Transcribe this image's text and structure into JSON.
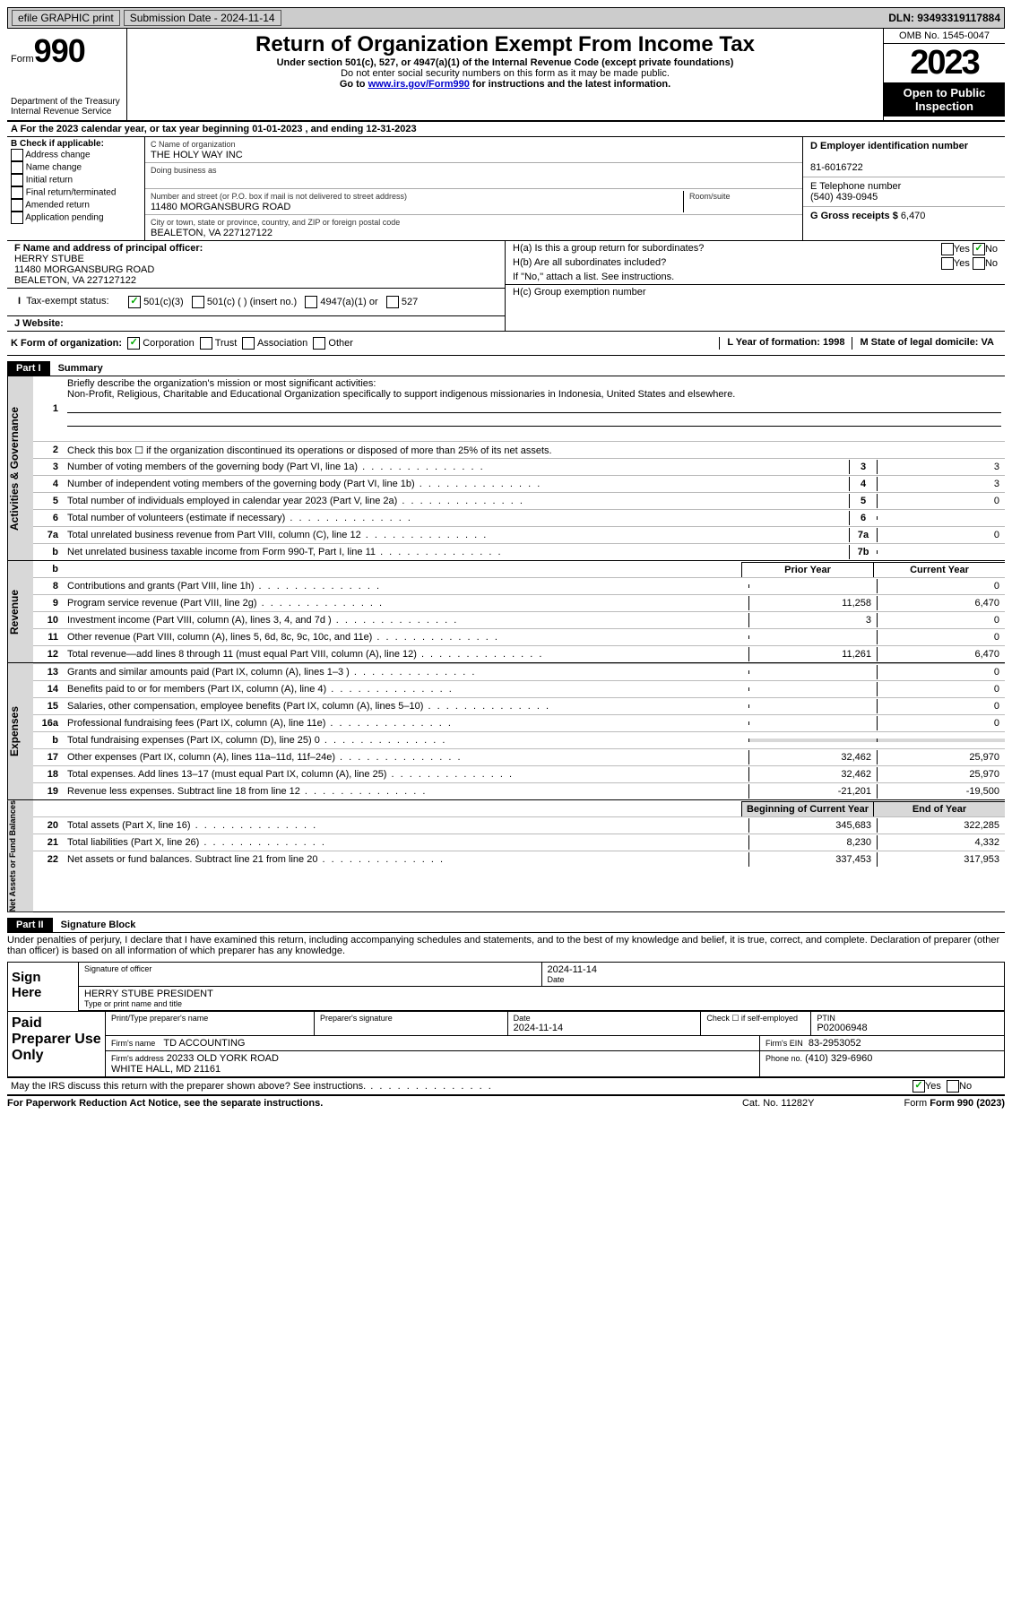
{
  "topbar": {
    "efile": "efile GRAPHIC print",
    "submission": "Submission Date - 2024-11-14",
    "dln": "DLN: 93493319117884"
  },
  "header": {
    "form": "Form",
    "num": "990",
    "title": "Return of Organization Exempt From Income Tax",
    "sub": "Under section 501(c), 527, or 4947(a)(1) of the Internal Revenue Code (except private foundations)",
    "nossn": "Do not enter social security numbers on this form as it may be made public.",
    "goto_pre": "Go to ",
    "goto_link": "www.irs.gov/Form990",
    "goto_post": " for instructions and the latest information.",
    "dept": "Department of the Treasury",
    "irs": "Internal Revenue Service",
    "omb": "OMB No. 1545-0047",
    "year": "2023",
    "open_pub": "Open to Public Inspection"
  },
  "row_a": "A For the 2023 calendar year, or tax year beginning 01-01-2023    , and ending 12-31-2023",
  "box_b": {
    "label": "B Check if applicable:",
    "addr": "Address change",
    "name": "Name change",
    "init": "Initial return",
    "final": "Final return/terminated",
    "amend": "Amended return",
    "app": "Application pending"
  },
  "box_c": {
    "name_lbl": "C Name of organization",
    "name": "THE HOLY WAY INC",
    "dba": "Doing business as",
    "street_lbl": "Number and street (or P.O. box if mail is not delivered to street address)",
    "street": "11480 MORGANSBURG ROAD",
    "room_lbl": "Room/suite",
    "city_lbl": "City or town, state or province, country, and ZIP or foreign postal code",
    "city": "BEALETON, VA  227127122"
  },
  "box_d": {
    "ein_lbl": "D Employer identification number",
    "ein": "81-6016722",
    "tel_lbl": "E Telephone number",
    "tel": "(540) 439-0945",
    "gross_lbl": "G Gross receipts $",
    "gross": "6,470"
  },
  "box_f": {
    "lbl": "F Name and address of principal officer:",
    "name": "HERRY STUBE",
    "street": "11480 MORGANSBURG ROAD",
    "city": "BEALETON, VA  227127122"
  },
  "box_h": {
    "a": "H(a)  Is this a group return for subordinates?",
    "b": "H(b)  Are all subordinates included?",
    "note": "If \"No,\" attach a list. See instructions.",
    "c": "H(c)  Group exemption number",
    "yes": "Yes",
    "no": "No"
  },
  "row_i": {
    "lbl": "Tax-exempt status:",
    "o1": "501(c)(3)",
    "o2": "501(c) (  ) (insert no.)",
    "o3": "4947(a)(1) or",
    "o4": "527"
  },
  "row_j": {
    "lbl": "J    Website:"
  },
  "row_k": {
    "k": "K Form of organization:",
    "corp": "Corporation",
    "trust": "Trust",
    "assoc": "Association",
    "other": "Other",
    "l": "L Year of formation: 1998",
    "m": "M State of legal domicile: VA"
  },
  "part1": {
    "hdr": "Part I",
    "title": "Summary",
    "l1_lbl": "Briefly describe the organization's mission or most significant activities:",
    "l1_desc": "Non-Profit, Religious, Charitable and Educational Organization specifically to support indigenous missionaries in Indonesia, United States and elsewhere.",
    "l2": "Check this box ☐ if the organization discontinued its operations or disposed of more than 25% of its net assets.",
    "rows_gov": [
      {
        "n": "3",
        "d": "Number of voting members of the governing body (Part VI, line 1a)",
        "b": "3",
        "v": "3"
      },
      {
        "n": "4",
        "d": "Number of independent voting members of the governing body (Part VI, line 1b)",
        "b": "4",
        "v": "3"
      },
      {
        "n": "5",
        "d": "Total number of individuals employed in calendar year 2023 (Part V, line 2a)",
        "b": "5",
        "v": "0"
      },
      {
        "n": "6",
        "d": "Total number of volunteers (estimate if necessary)",
        "b": "6",
        "v": ""
      },
      {
        "n": "7a",
        "d": "Total unrelated business revenue from Part VIII, column (C), line 12",
        "b": "7a",
        "v": "0"
      },
      {
        "n": "b",
        "d": "Net unrelated business taxable income from Form 990-T, Part I, line 11",
        "b": "7b",
        "v": ""
      }
    ],
    "prior": "Prior Year",
    "current": "Current Year",
    "rows_rev": [
      {
        "n": "8",
        "d": "Contributions and grants (Part VIII, line 1h)",
        "p": "",
        "c": "0"
      },
      {
        "n": "9",
        "d": "Program service revenue (Part VIII, line 2g)",
        "p": "11,258",
        "c": "6,470"
      },
      {
        "n": "10",
        "d": "Investment income (Part VIII, column (A), lines 3, 4, and 7d )",
        "p": "3",
        "c": "0"
      },
      {
        "n": "11",
        "d": "Other revenue (Part VIII, column (A), lines 5, 6d, 8c, 9c, 10c, and 11e)",
        "p": "",
        "c": "0"
      },
      {
        "n": "12",
        "d": "Total revenue—add lines 8 through 11 (must equal Part VIII, column (A), line 12)",
        "p": "11,261",
        "c": "6,470"
      }
    ],
    "rows_exp": [
      {
        "n": "13",
        "d": "Grants and similar amounts paid (Part IX, column (A), lines 1–3 )",
        "p": "",
        "c": "0"
      },
      {
        "n": "14",
        "d": "Benefits paid to or for members (Part IX, column (A), line 4)",
        "p": "",
        "c": "0"
      },
      {
        "n": "15",
        "d": "Salaries, other compensation, employee benefits (Part IX, column (A), lines 5–10)",
        "p": "",
        "c": "0"
      },
      {
        "n": "16a",
        "d": "Professional fundraising fees (Part IX, column (A), line 11e)",
        "p": "",
        "c": "0"
      },
      {
        "n": "b",
        "d": "Total fundraising expenses (Part IX, column (D), line 25) 0",
        "p": "",
        "c": "",
        "grey": true
      },
      {
        "n": "17",
        "d": "Other expenses (Part IX, column (A), lines 11a–11d, 11f–24e)",
        "p": "32,462",
        "c": "25,970"
      },
      {
        "n": "18",
        "d": "Total expenses. Add lines 13–17 (must equal Part IX, column (A), line 25)",
        "p": "32,462",
        "c": "25,970"
      },
      {
        "n": "19",
        "d": "Revenue less expenses. Subtract line 18 from line 12",
        "p": "-21,201",
        "c": "-19,500"
      }
    ],
    "boy": "Beginning of Current Year",
    "eoy": "End of Year",
    "rows_net": [
      {
        "n": "20",
        "d": "Total assets (Part X, line 16)",
        "p": "345,683",
        "c": "322,285"
      },
      {
        "n": "21",
        "d": "Total liabilities (Part X, line 26)",
        "p": "8,230",
        "c": "4,332"
      },
      {
        "n": "22",
        "d": "Net assets or fund balances. Subtract line 21 from line 20",
        "p": "337,453",
        "c": "317,953"
      }
    ]
  },
  "part2": {
    "hdr": "Part II",
    "title": "Signature Block",
    "penalties": "Under penalties of perjury, I declare that I have examined this return, including accompanying schedules and statements, and to the best of my knowledge and belief, it is true, correct, and complete. Declaration of preparer (other than officer) is based on all information of which preparer has any knowledge."
  },
  "sign": {
    "lbl": "Sign Here",
    "sig": "Signature of officer",
    "date": "2024-11-14",
    "name": "HERRY STUBE  PRESIDENT",
    "type": "Type or print name and title"
  },
  "paid": {
    "lbl": "Paid Preparer Use Only",
    "pname": "Print/Type preparer's name",
    "psig": "Preparer's signature",
    "pdate_lbl": "Date",
    "pdate": "2024-11-14",
    "chk": "Check ☐ if self-employed",
    "ptin_lbl": "PTIN",
    "ptin": "P02006948",
    "firm_lbl": "Firm's name",
    "firm": "TD ACCOUNTING",
    "ein_lbl": "Firm's EIN",
    "ein": "83-2953052",
    "addr_lbl": "Firm's address",
    "addr": "20233 OLD YORK ROAD",
    "addr2": "WHITE HALL, MD  21161",
    "phone_lbl": "Phone no.",
    "phone": "(410) 329-6960"
  },
  "discuss": "May the IRS discuss this return with the preparer shown above? See instructions.",
  "footer": {
    "pra": "For Paperwork Reduction Act Notice, see the separate instructions.",
    "cat": "Cat. No. 11282Y",
    "form": "Form 990 (2023)"
  },
  "tabs": {
    "gov": "Activities & Governance",
    "rev": "Revenue",
    "exp": "Expenses",
    "net": "Net Assets or Fund Balances"
  }
}
